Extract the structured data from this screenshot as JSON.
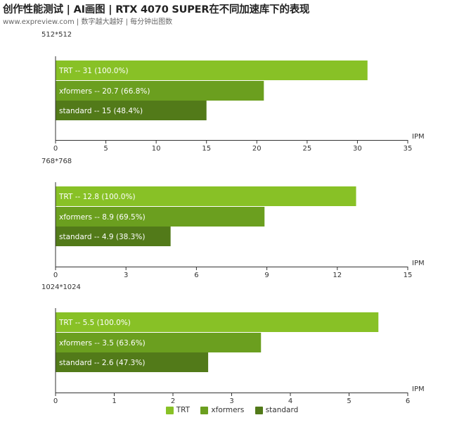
{
  "title": "创作性能测试 | AI画图 | RTX 4070 SUPER在不同加速库下的表现",
  "subtitle": "www.expreview.com | 数字越大越好 | 每分钟出图数",
  "colors": {
    "TRT": "#88c126",
    "xformers": "#6b9f1f",
    "standard": "#527a19"
  },
  "legend": [
    "TRT",
    "xformers",
    "standard"
  ],
  "chart_data": [
    {
      "type": "bar",
      "orientation": "horizontal",
      "title": "512*512",
      "xlabel": "IPM",
      "xlim": [
        0,
        35
      ],
      "ticks": [
        0,
        5,
        10,
        15,
        20,
        25,
        30,
        35
      ],
      "bars": [
        {
          "series": "TRT",
          "value": 31,
          "label": "TRT  --  31 (100.0%)"
        },
        {
          "series": "xformers",
          "value": 20.7,
          "label": "xformers  --  20.7 (66.8%)"
        },
        {
          "series": "standard",
          "value": 15,
          "label": "standard  --  15 (48.4%)"
        }
      ]
    },
    {
      "type": "bar",
      "orientation": "horizontal",
      "title": "768*768",
      "xlabel": "IPM",
      "xlim": [
        0,
        15
      ],
      "ticks": [
        0,
        3,
        6,
        9,
        12,
        15
      ],
      "bars": [
        {
          "series": "TRT",
          "value": 12.8,
          "label": "TRT  --  12.8 (100.0%)"
        },
        {
          "series": "xformers",
          "value": 8.9,
          "label": "xformers  --  8.9 (69.5%)"
        },
        {
          "series": "standard",
          "value": 4.9,
          "label": "standard  --  4.9 (38.3%)"
        }
      ]
    },
    {
      "type": "bar",
      "orientation": "horizontal",
      "title": "1024*1024",
      "xlabel": "IPM",
      "xlim": [
        0,
        6
      ],
      "ticks": [
        0,
        1,
        2,
        3,
        4,
        5,
        6
      ],
      "bars": [
        {
          "series": "TRT",
          "value": 5.5,
          "label": "TRT  --  5.5 (100.0%)"
        },
        {
          "series": "xformers",
          "value": 3.5,
          "label": "xformers  --  3.5 (63.6%)"
        },
        {
          "series": "standard",
          "value": 2.6,
          "label": "standard  --  2.6 (47.3%)"
        }
      ]
    }
  ]
}
